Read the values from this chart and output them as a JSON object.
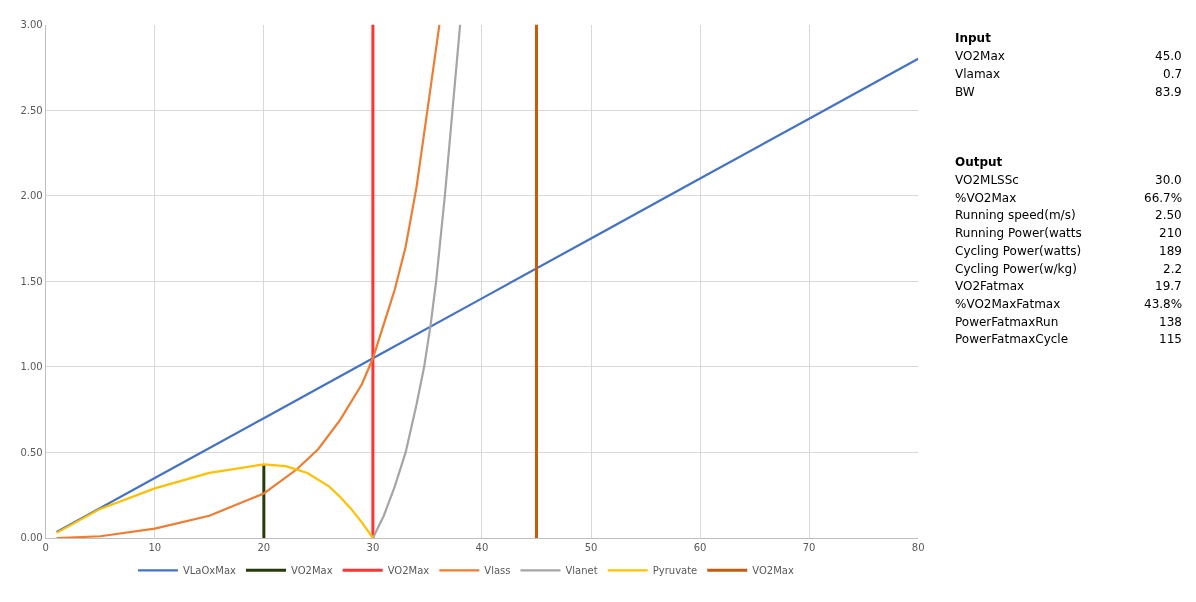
{
  "chart_data": [
    {
      "type": "line",
      "xlim": [
        0,
        80
      ],
      "ylim": [
        0,
        3
      ],
      "xticks": [
        0,
        10,
        20,
        30,
        40,
        50,
        60,
        70,
        80
      ],
      "yticks": [
        {
          "value": 0,
          "label": "0.00"
        },
        {
          "value": 0.5,
          "label": "0.50"
        },
        {
          "value": 1,
          "label": "1.00"
        },
        {
          "value": 1.5,
          "label": "1.50"
        },
        {
          "value": 2,
          "label": "2.00"
        },
        {
          "value": 2.5,
          "label": "2.50"
        },
        {
          "value": 3,
          "label": "3.00"
        }
      ],
      "grid": true,
      "legend": "bottom",
      "line_style": "solid",
      "series": [
        {
          "name": "VLaOxMax",
          "color": "#4472c4",
          "x": [
            1,
            10,
            20,
            30,
            40,
            50,
            60,
            70,
            80
          ],
          "values": [
            0.035,
            0.35,
            0.7,
            1.05,
            1.4,
            1.75,
            2.1,
            2.45,
            2.8
          ]
        },
        {
          "name": "VO2Max",
          "color": "#263c0a",
          "x": [
            20,
            20
          ],
          "values": [
            0,
            0.43
          ]
        },
        {
          "name": "VO2Max",
          "color": "#ff3333",
          "x": [
            30,
            30
          ],
          "values": [
            0,
            3
          ]
        },
        {
          "name": "Vlass",
          "color": "#ed7d31",
          "x": [
            1,
            5,
            10,
            15,
            20,
            23,
            25,
            27,
            29,
            30,
            31,
            32,
            33,
            34,
            35,
            36.1
          ],
          "values": [
            0,
            0.01,
            0.055,
            0.13,
            0.26,
            0.4,
            0.52,
            0.69,
            0.9,
            1.05,
            1.25,
            1.45,
            1.7,
            2.05,
            2.5,
            3.0
          ]
        },
        {
          "name": "Vlanet",
          "color": "#a5a5a5",
          "x": [
            30,
            31,
            32,
            33,
            34,
            34.7,
            35.3,
            35.8,
            36.6,
            37.3,
            38
          ],
          "values": [
            0,
            0.13,
            0.3,
            0.5,
            0.78,
            1.0,
            1.25,
            1.5,
            2.0,
            2.5,
            3.0
          ]
        },
        {
          "name": "Pyruvate",
          "color": "#ffc000",
          "x": [
            1,
            5,
            10,
            15,
            20,
            22,
            24,
            26,
            27,
            28,
            29,
            30
          ],
          "values": [
            0.03,
            0.17,
            0.29,
            0.38,
            0.43,
            0.42,
            0.38,
            0.3,
            0.24,
            0.17,
            0.09,
            0
          ]
        },
        {
          "name": "VO2Max",
          "color": "#c55a11",
          "x": [
            45,
            45
          ],
          "values": [
            0,
            3
          ]
        }
      ]
    },
    {
      "type": "other",
      "categories": [
        "Input",
        "VO2Max",
        "Vlamax",
        "BW",
        "Output",
        "VO2MLSSc",
        "%VO2Max",
        "Running speed(m/s)",
        "Running Power(watts",
        "Cycling Power(watts)",
        "Cycling Power(w/kg)",
        "VO2Fatmax",
        "%VO2MaxFatmax",
        "PowerFatmaxRun",
        "PowerFatmaxCycle"
      ],
      "value_labels": [
        null,
        "45.0",
        "0.7",
        "83.9",
        null,
        "30.0",
        "66.7%",
        "2.50",
        "210",
        "189",
        "2.2",
        "19.7",
        "43.8%",
        "138",
        "115"
      ]
    }
  ]
}
